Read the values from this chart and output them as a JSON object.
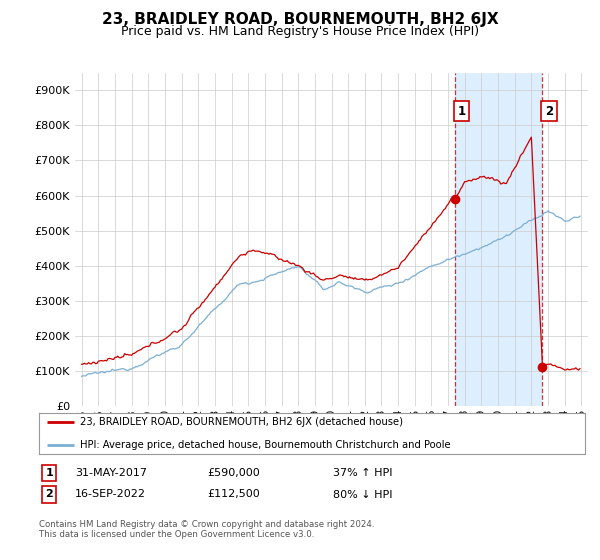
{
  "title": "23, BRAIDLEY ROAD, BOURNEMOUTH, BH2 6JX",
  "subtitle": "Price paid vs. HM Land Registry's House Price Index (HPI)",
  "ytick_values": [
    0,
    100000,
    200000,
    300000,
    400000,
    500000,
    600000,
    700000,
    800000,
    900000
  ],
  "ylim": [
    0,
    950000
  ],
  "red_line_color": "#cc0000",
  "blue_line_color": "#7bafd4",
  "shade_color": "#ddeeff",
  "dashed_color": "#cc0000",
  "marker1_yr": 2017.4167,
  "marker1_price": 590000,
  "marker2_yr": 2022.6667,
  "marker2_price": 112500,
  "annotation1": {
    "label": "1",
    "date": "31-MAY-2017",
    "price": "£590,000",
    "change": "37% ↑ HPI"
  },
  "annotation2": {
    "label": "2",
    "date": "16-SEP-2022",
    "price": "£112,500",
    "change": "80% ↓ HPI"
  },
  "legend_red": "23, BRAIDLEY ROAD, BOURNEMOUTH, BH2 6JX (detached house)",
  "legend_blue": "HPI: Average price, detached house, Bournemouth Christchurch and Poole",
  "footer": "Contains HM Land Registry data © Crown copyright and database right 2024.\nThis data is licensed under the Open Government Licence v3.0.",
  "title_fontsize": 11,
  "subtitle_fontsize": 9,
  "background_color": "#ffffff",
  "grid_color": "#cccccc",
  "xmin": 1994.6,
  "xmax": 2025.4
}
